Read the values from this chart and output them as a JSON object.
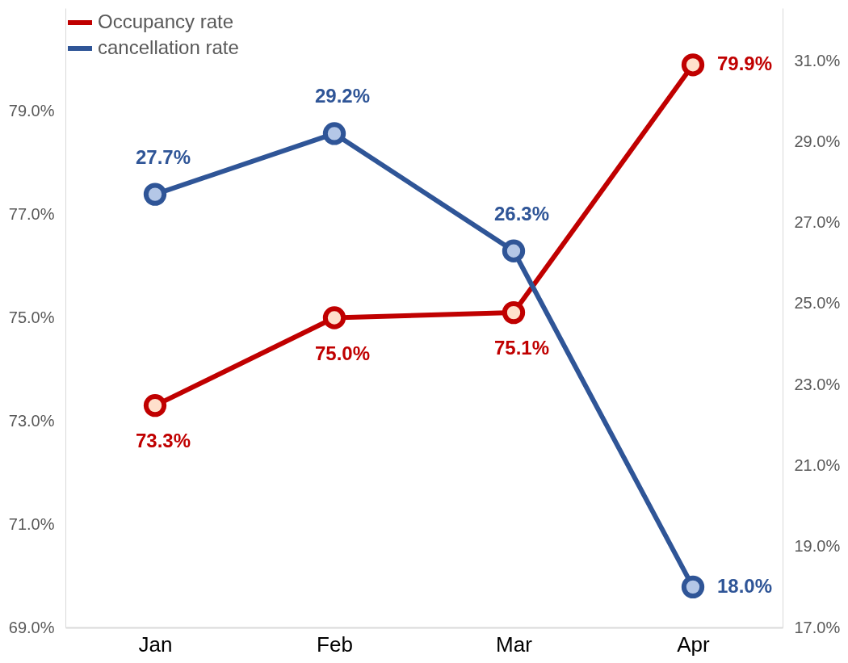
{
  "chart_data": {
    "type": "line",
    "categories": [
      "Jan",
      "Feb",
      "Mar",
      "Apr"
    ],
    "series": [
      {
        "name": "Occupancy rate",
        "color": "#c00000",
        "values": [
          73.3,
          75.0,
          75.1,
          79.9
        ],
        "value_labels": [
          "73.3%",
          "75.0%",
          "75.1%",
          "79.9%"
        ]
      },
      {
        "name": "cancellation rate",
        "color": "#2f5597",
        "axis": "y2",
        "values": [
          27.7,
          29.2,
          26.3,
          18.0
        ],
        "value_labels": [
          "27.7%",
          "29.2%",
          "26.3%",
          "18.0%"
        ]
      }
    ],
    "ylim": [
      69,
      81
    ],
    "yticks": [
      {
        "value": 69,
        "label": "69.0%"
      },
      {
        "value": 71,
        "label": "71.0%"
      },
      {
        "value": 73,
        "label": "73.0%"
      },
      {
        "value": 75,
        "label": "75.0%"
      },
      {
        "value": 77,
        "label": "77.0%"
      },
      {
        "value": 79,
        "label": "79.0%"
      }
    ],
    "y2lim": [
      17,
      32.3
    ],
    "y2ticks": [
      {
        "value": 17,
        "label": "17.0%"
      },
      {
        "value": 19,
        "label": "19.0%"
      },
      {
        "value": 21,
        "label": "21.0%"
      },
      {
        "value": 23,
        "label": "23.0%"
      },
      {
        "value": 25,
        "label": "25.0%"
      },
      {
        "value": 27,
        "label": "27.0%"
      },
      {
        "value": 29,
        "label": "29.0%"
      },
      {
        "value": 31,
        "label": "31.0%"
      }
    ],
    "grid": false,
    "legend": "top left",
    "marker": "circle",
    "line_style": "solid"
  }
}
